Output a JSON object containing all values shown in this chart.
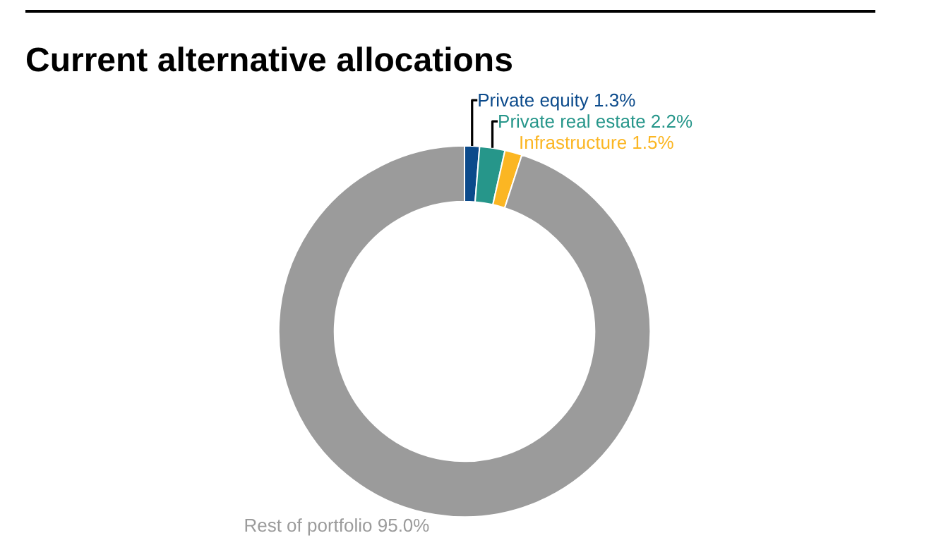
{
  "chart_data": {
    "type": "donut",
    "title": "Current alternative allocations",
    "categories": [
      "Private equity",
      "Private real estate",
      "Infrastructure",
      "Rest of portfolio"
    ],
    "values": [
      1.3,
      2.2,
      1.5,
      95.0
    ],
    "value_labels": [
      "1.3%",
      "2.2%",
      "1.5%",
      "95.0%"
    ],
    "colors": [
      "#0b4a8b",
      "#26968a",
      "#fbb623",
      "#9b9b9b"
    ],
    "legend": false
  }
}
